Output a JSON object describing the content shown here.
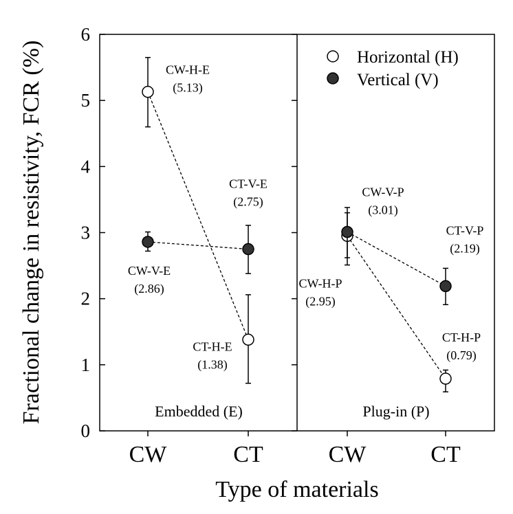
{
  "chart_data": {
    "type": "scatter",
    "ylabel": "Fractional change in resistivity, FCR (%)",
    "xlabel": "Type of materials",
    "ylim": [
      0,
      6
    ],
    "yticks": [
      "0",
      "1",
      "2",
      "3",
      "4",
      "5",
      "6"
    ],
    "categories": [
      "CW",
      "CT",
      "CW",
      "CT"
    ],
    "panels": [
      "Embedded (E)",
      "Plug-in (P)"
    ],
    "legend": {
      "position": "top-right",
      "horizontal": "Horizontal (H)",
      "vertical": "Vertical (V)"
    },
    "series": [
      {
        "name": "Horizontal (H)",
        "panel": "Embedded (E)",
        "marker": "open",
        "points": [
          {
            "x": "CW",
            "y": 5.13,
            "err": [
              4.6,
              5.65
            ],
            "label": "CW-H-E",
            "value_text": "(5.13)"
          },
          {
            "x": "CT",
            "y": 1.38,
            "err": [
              0.72,
              2.06
            ],
            "label": "CT-H-E",
            "value_text": "(1.38)"
          }
        ]
      },
      {
        "name": "Vertical (V)",
        "panel": "Embedded (E)",
        "marker": "filled",
        "points": [
          {
            "x": "CW",
            "y": 2.86,
            "err": [
              2.72,
              3.01
            ],
            "label": "CW-V-E",
            "value_text": "(2.86)"
          },
          {
            "x": "CT",
            "y": 2.75,
            "err": [
              2.38,
              3.11
            ],
            "label": "CT-V-E",
            "value_text": "(2.75)"
          }
        ]
      },
      {
        "name": "Horizontal (H)",
        "panel": "Plug-in (P)",
        "marker": "open",
        "points": [
          {
            "x": "CW",
            "y": 2.95,
            "err": [
              2.51,
              3.3
            ],
            "label": "CW-H-P",
            "value_text": "(2.95)"
          },
          {
            "x": "CT",
            "y": 0.79,
            "err": [
              0.59,
              0.92
            ],
            "label": "CT-H-P",
            "value_text": "(0.79)"
          }
        ]
      },
      {
        "name": "Vertical (V)",
        "panel": "Plug-in (P)",
        "marker": "filled",
        "points": [
          {
            "x": "CW",
            "y": 3.01,
            "err": [
              2.62,
              3.38
            ],
            "label": "CW-V-P",
            "value_text": "(3.01)"
          },
          {
            "x": "CT",
            "y": 2.19,
            "err": [
              1.91,
              2.46
            ],
            "label": "CT-V-P",
            "value_text": "(2.19)"
          }
        ]
      }
    ]
  }
}
